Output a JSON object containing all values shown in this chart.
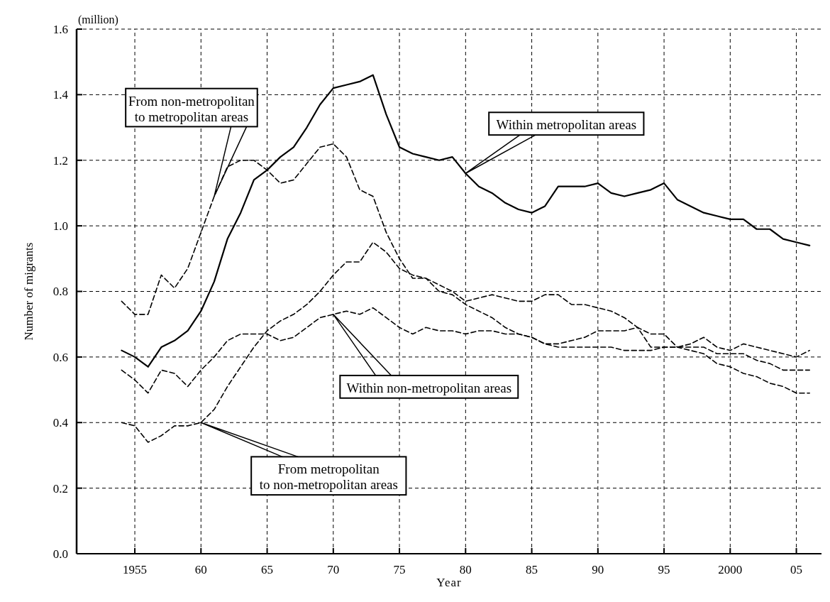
{
  "chart_data": {
    "type": "line",
    "xlabel": "Year",
    "ylabel": "Number of migrants",
    "x": [
      1954,
      1955,
      1956,
      1957,
      1958,
      1959,
      1960,
      1961,
      1962,
      1963,
      1964,
      1965,
      1966,
      1967,
      1968,
      1969,
      1970,
      1971,
      1972,
      1973,
      1974,
      1975,
      1976,
      1977,
      1978,
      1979,
      1980,
      1981,
      1982,
      1983,
      1984,
      1985,
      1986,
      1987,
      1988,
      1989,
      1990,
      1991,
      1992,
      1993,
      1994,
      1995,
      1996,
      1997,
      1998,
      1999,
      2000,
      2001,
      2002,
      2003,
      2004,
      2005,
      2006
    ],
    "series": [
      {
        "name": "Within metropolitan areas",
        "color": "#000000",
        "line_style": "solid",
        "values": [
          0.62,
          0.6,
          0.57,
          0.63,
          0.65,
          0.68,
          0.74,
          0.83,
          0.96,
          1.04,
          1.14,
          1.17,
          1.21,
          1.24,
          1.3,
          1.37,
          1.42,
          1.43,
          1.44,
          1.46,
          1.34,
          1.24,
          1.22,
          1.21,
          1.2,
          1.21,
          1.16,
          1.12,
          1.1,
          1.07,
          1.05,
          1.04,
          1.06,
          1.12,
          1.12,
          1.12,
          1.13,
          1.1,
          1.09,
          1.1,
          1.11,
          1.13,
          1.08,
          1.06,
          1.04,
          1.03,
          1.02,
          1.02,
          0.99,
          0.99,
          0.96,
          0.95,
          0.94
        ]
      },
      {
        "name": "From non-metropolitan\nto metropolitan areas",
        "color": "#000000",
        "line_style": "dashed",
        "values": [
          0.77,
          0.73,
          0.73,
          0.85,
          0.81,
          0.87,
          0.98,
          1.09,
          1.18,
          1.2,
          1.2,
          1.17,
          1.13,
          1.14,
          1.19,
          1.24,
          1.25,
          1.21,
          1.11,
          1.09,
          0.98,
          0.9,
          0.84,
          0.84,
          0.82,
          0.8,
          0.77,
          0.78,
          0.79,
          0.78,
          0.77,
          0.77,
          0.79,
          0.79,
          0.76,
          0.76,
          0.75,
          0.74,
          0.72,
          0.69,
          0.63,
          0.63,
          0.63,
          0.64,
          0.66,
          0.63,
          0.62,
          0.64,
          0.63,
          0.62,
          0.61,
          0.6,
          0.62
        ]
      },
      {
        "name": "From metropolitan\nto non-metropolitan areas",
        "color": "#000000",
        "line_style": "dashed",
        "values": [
          0.4,
          0.39,
          0.34,
          0.36,
          0.39,
          0.39,
          0.4,
          0.44,
          0.51,
          0.57,
          0.63,
          0.68,
          0.71,
          0.73,
          0.76,
          0.8,
          0.85,
          0.89,
          0.89,
          0.95,
          0.92,
          0.87,
          0.85,
          0.84,
          0.8,
          0.79,
          0.76,
          0.74,
          0.72,
          0.69,
          0.67,
          0.66,
          0.64,
          0.64,
          0.65,
          0.66,
          0.68,
          0.68,
          0.68,
          0.69,
          0.67,
          0.67,
          0.63,
          0.62,
          0.61,
          0.58,
          0.57,
          0.55,
          0.54,
          0.52,
          0.51,
          0.49,
          0.49
        ]
      },
      {
        "name": "Within non-metropolitan areas",
        "color": "#000000",
        "line_style": "dashed",
        "values": [
          0.56,
          0.53,
          0.49,
          0.56,
          0.55,
          0.51,
          0.56,
          0.6,
          0.65,
          0.67,
          0.67,
          0.67,
          0.65,
          0.66,
          0.69,
          0.72,
          0.73,
          0.74,
          0.73,
          0.75,
          0.72,
          0.69,
          0.67,
          0.69,
          0.68,
          0.68,
          0.67,
          0.68,
          0.68,
          0.67,
          0.67,
          0.66,
          0.64,
          0.63,
          0.63,
          0.63,
          0.63,
          0.63,
          0.62,
          0.62,
          0.62,
          0.63,
          0.63,
          0.63,
          0.63,
          0.61,
          0.61,
          0.61,
          0.59,
          0.58,
          0.56,
          0.56,
          0.56
        ]
      }
    ],
    "xlim": [
      1950.6,
      2006.9
    ],
    "xticks": [
      1955,
      {
        "value": 1960,
        "label": "60"
      },
      {
        "value": 1965,
        "label": "65"
      },
      {
        "value": 1970,
        "label": "70"
      },
      {
        "value": 1975,
        "label": "75"
      },
      {
        "value": 1980,
        "label": "80"
      },
      {
        "value": 1985,
        "label": "85"
      },
      {
        "value": 1990,
        "label": "90"
      },
      {
        "value": 1995,
        "label": "95"
      },
      2000,
      {
        "value": 2005,
        "label": "05"
      }
    ],
    "ylim": [
      0,
      1.6
    ],
    "yticks": [
      {
        "value": 0,
        "label": "0.0"
      },
      0.2,
      0.4,
      0.6,
      0.8,
      {
        "value": 1,
        "label": "1.0"
      },
      1.2,
      1.4,
      1.6
    ],
    "grid": true,
    "annotations": [
      "(million)"
    ]
  }
}
